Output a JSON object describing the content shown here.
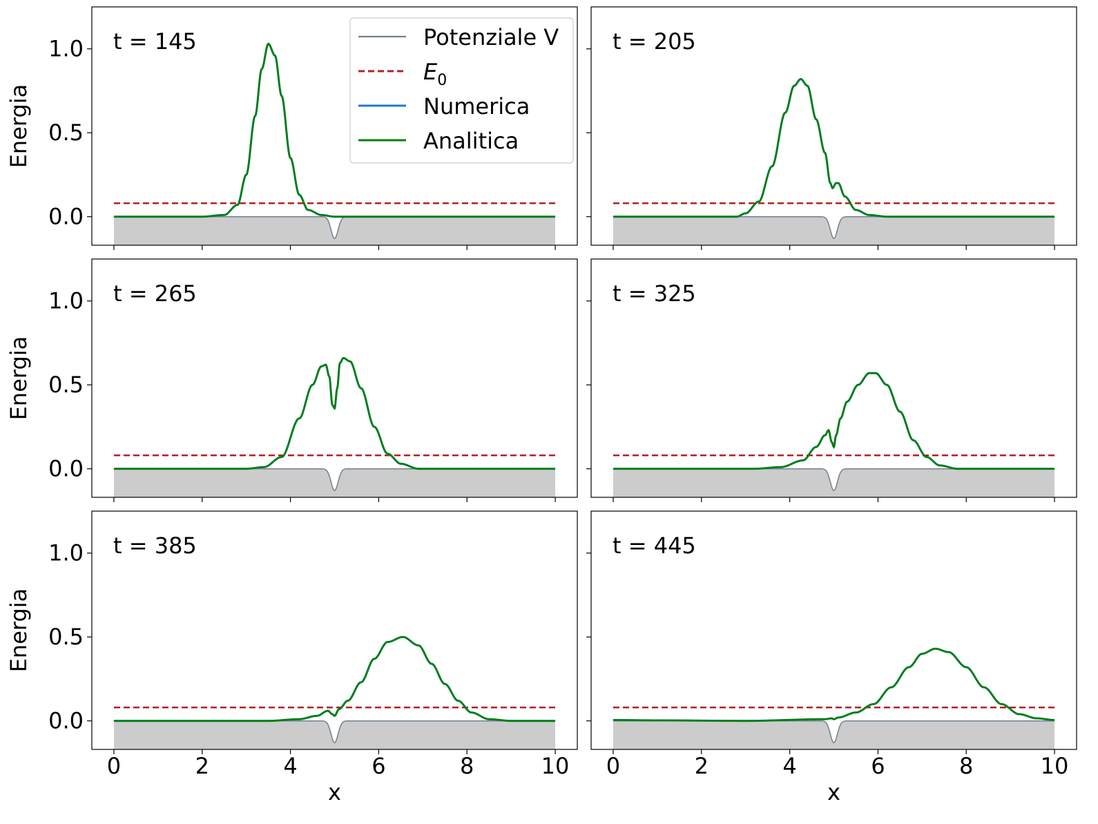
{
  "figure": {
    "ylabel": "Energia",
    "xlabel": "x",
    "legend": {
      "placement": "top-right of first panel",
      "entries": [
        {
          "label": "Potenziale V",
          "color": "#708090",
          "style": "solid"
        },
        {
          "label": "E",
          "subscript": "0",
          "color": "#b22222",
          "style": "dashed"
        },
        {
          "label": "Numerica",
          "color": "#1f77d4",
          "style": "solid"
        },
        {
          "label": "Analitica",
          "color": "#008000",
          "style": "solid"
        }
      ]
    }
  },
  "chart_data": [
    {
      "type": "line",
      "annotation": "t = 145",
      "xlim": [
        -0.5,
        10.5
      ],
      "ylim": [
        -0.17,
        1.25
      ],
      "xticks": [
        0,
        2,
        4,
        6,
        8,
        10
      ],
      "yticks": [
        0.0,
        0.5,
        1.0
      ],
      "E0": 0.08,
      "potential": {
        "center": 5.0,
        "depth": -0.13,
        "width": 0.08,
        "fill_color": "#cccccc"
      },
      "wave": [
        [
          0,
          0.0
        ],
        [
          2.0,
          0.0
        ],
        [
          2.5,
          0.01
        ],
        [
          2.8,
          0.07
        ],
        [
          3.0,
          0.25
        ],
        [
          3.2,
          0.6
        ],
        [
          3.35,
          0.88
        ],
        [
          3.5,
          1.03
        ],
        [
          3.65,
          0.96
        ],
        [
          3.8,
          0.72
        ],
        [
          4.0,
          0.35
        ],
        [
          4.2,
          0.13
        ],
        [
          4.4,
          0.04
        ],
        [
          4.7,
          0.01
        ],
        [
          5.0,
          0.0
        ],
        [
          10,
          0.0
        ]
      ]
    },
    {
      "type": "line",
      "annotation": "t = 205",
      "xlim": [
        -0.5,
        10.5
      ],
      "ylim": [
        -0.17,
        1.25
      ],
      "xticks": [
        0,
        2,
        4,
        6,
        8,
        10
      ],
      "yticks": [
        0.0,
        0.5,
        1.0
      ],
      "E0": 0.08,
      "potential": {
        "center": 5.0,
        "depth": -0.13,
        "width": 0.08,
        "fill_color": "#cccccc"
      },
      "wave": [
        [
          0,
          0.0
        ],
        [
          2.8,
          0.0
        ],
        [
          3.0,
          0.02
        ],
        [
          3.3,
          0.09
        ],
        [
          3.6,
          0.3
        ],
        [
          3.9,
          0.62
        ],
        [
          4.1,
          0.78
        ],
        [
          4.25,
          0.82
        ],
        [
          4.4,
          0.78
        ],
        [
          4.6,
          0.58
        ],
        [
          4.8,
          0.38
        ],
        [
          4.92,
          0.2
        ],
        [
          4.97,
          0.17
        ],
        [
          5.05,
          0.2
        ],
        [
          5.1,
          0.2
        ],
        [
          5.25,
          0.12
        ],
        [
          5.5,
          0.04
        ],
        [
          5.8,
          0.01
        ],
        [
          6.2,
          0.0
        ],
        [
          10,
          0.0
        ]
      ]
    },
    {
      "type": "line",
      "annotation": "t = 265",
      "xlim": [
        -0.5,
        10.5
      ],
      "ylim": [
        -0.17,
        1.25
      ],
      "xticks": [
        0,
        2,
        4,
        6,
        8,
        10
      ],
      "yticks": [
        0.0,
        0.5,
        1.0
      ],
      "E0": 0.08,
      "potential": {
        "center": 5.0,
        "depth": -0.13,
        "width": 0.08,
        "fill_color": "#cccccc"
      },
      "wave": [
        [
          0,
          0.0
        ],
        [
          3.0,
          0.0
        ],
        [
          3.4,
          0.01
        ],
        [
          3.8,
          0.07
        ],
        [
          4.2,
          0.3
        ],
        [
          4.5,
          0.5
        ],
        [
          4.7,
          0.61
        ],
        [
          4.8,
          0.62
        ],
        [
          4.88,
          0.55
        ],
        [
          4.95,
          0.38
        ],
        [
          5.0,
          0.36
        ],
        [
          5.06,
          0.48
        ],
        [
          5.12,
          0.63
        ],
        [
          5.2,
          0.66
        ],
        [
          5.35,
          0.64
        ],
        [
          5.6,
          0.48
        ],
        [
          5.9,
          0.25
        ],
        [
          6.2,
          0.09
        ],
        [
          6.5,
          0.03
        ],
        [
          6.9,
          0.0
        ],
        [
          10,
          0.0
        ]
      ]
    },
    {
      "type": "line",
      "annotation": "t = 325",
      "xlim": [
        -0.5,
        10.5
      ],
      "ylim": [
        -0.17,
        1.25
      ],
      "xticks": [
        0,
        2,
        4,
        6,
        8,
        10
      ],
      "yticks": [
        0.0,
        0.5,
        1.0
      ],
      "E0": 0.08,
      "potential": {
        "center": 5.0,
        "depth": -0.13,
        "width": 0.08,
        "fill_color": "#cccccc"
      },
      "wave": [
        [
          0,
          0.0
        ],
        [
          3.2,
          0.0
        ],
        [
          3.8,
          0.01
        ],
        [
          4.3,
          0.05
        ],
        [
          4.6,
          0.13
        ],
        [
          4.8,
          0.2
        ],
        [
          4.88,
          0.23
        ],
        [
          4.95,
          0.16
        ],
        [
          5.0,
          0.13
        ],
        [
          5.05,
          0.2
        ],
        [
          5.15,
          0.3
        ],
        [
          5.3,
          0.4
        ],
        [
          5.55,
          0.5
        ],
        [
          5.8,
          0.57
        ],
        [
          5.95,
          0.57
        ],
        [
          6.2,
          0.5
        ],
        [
          6.5,
          0.34
        ],
        [
          6.8,
          0.17
        ],
        [
          7.1,
          0.07
        ],
        [
          7.4,
          0.02
        ],
        [
          7.8,
          0.0
        ],
        [
          10,
          0.0
        ]
      ]
    },
    {
      "type": "line",
      "annotation": "t = 385",
      "xlim": [
        -0.5,
        10.5
      ],
      "ylim": [
        -0.17,
        1.25
      ],
      "xticks": [
        0,
        2,
        4,
        6,
        8,
        10
      ],
      "yticks": [
        0.0,
        0.5,
        1.0
      ],
      "E0": 0.08,
      "potential": {
        "center": 5.0,
        "depth": -0.13,
        "width": 0.08,
        "fill_color": "#cccccc"
      },
      "wave": [
        [
          0,
          0.0
        ],
        [
          3.5,
          0.0
        ],
        [
          4.2,
          0.01
        ],
        [
          4.6,
          0.03
        ],
        [
          4.85,
          0.06
        ],
        [
          4.95,
          0.04
        ],
        [
          5.0,
          0.03
        ],
        [
          5.1,
          0.07
        ],
        [
          5.3,
          0.12
        ],
        [
          5.6,
          0.23
        ],
        [
          5.9,
          0.37
        ],
        [
          6.2,
          0.47
        ],
        [
          6.55,
          0.5
        ],
        [
          6.9,
          0.45
        ],
        [
          7.2,
          0.34
        ],
        [
          7.5,
          0.22
        ],
        [
          7.8,
          0.12
        ],
        [
          8.1,
          0.05
        ],
        [
          8.5,
          0.01
        ],
        [
          9.0,
          0.0
        ],
        [
          10,
          0.0
        ]
      ]
    },
    {
      "type": "line",
      "annotation": "t = 445",
      "xlim": [
        -0.5,
        10.5
      ],
      "ylim": [
        -0.17,
        1.25
      ],
      "xticks": [
        0,
        2,
        4,
        6,
        8,
        10
      ],
      "yticks": [
        0.0,
        0.5,
        1.0
      ],
      "E0": 0.08,
      "potential": {
        "center": 5.0,
        "depth": -0.13,
        "width": 0.08,
        "fill_color": "#cccccc"
      },
      "wave": [
        [
          0,
          0.005
        ],
        [
          1.0,
          0.003
        ],
        [
          3.0,
          0.0
        ],
        [
          4.8,
          0.01
        ],
        [
          4.95,
          0.015
        ],
        [
          5.0,
          0.01
        ],
        [
          5.1,
          0.02
        ],
        [
          5.5,
          0.05
        ],
        [
          5.9,
          0.1
        ],
        [
          6.3,
          0.2
        ],
        [
          6.7,
          0.32
        ],
        [
          7.0,
          0.4
        ],
        [
          7.3,
          0.43
        ],
        [
          7.6,
          0.41
        ],
        [
          8.0,
          0.32
        ],
        [
          8.4,
          0.2
        ],
        [
          8.8,
          0.1
        ],
        [
          9.2,
          0.04
        ],
        [
          9.6,
          0.015
        ],
        [
          10.0,
          0.005
        ]
      ]
    }
  ]
}
